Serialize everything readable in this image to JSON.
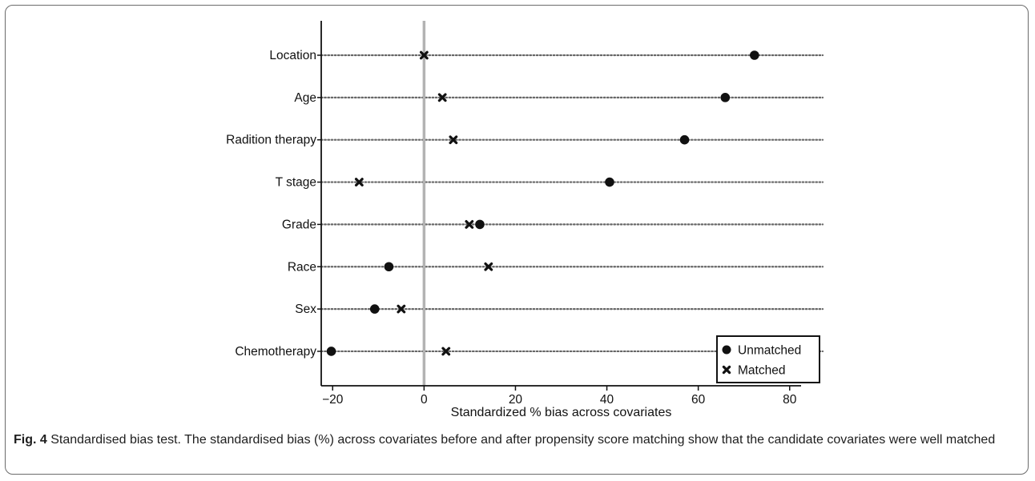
{
  "chart_data": {
    "type": "scatter",
    "categories": [
      "Location",
      "Age",
      "Radition therapy",
      "T stage",
      "Grade",
      "Race",
      "Sex",
      "Chemotherapy"
    ],
    "series": [
      {
        "name": "Unmatched",
        "marker": "circle",
        "values": [
          72.3,
          65.9,
          57.0,
          40.6,
          12.2,
          -7.7,
          -10.8,
          -20.3
        ]
      },
      {
        "name": "Matched",
        "marker": "x",
        "values": [
          0.0,
          4.0,
          6.4,
          -14.2,
          9.9,
          14.1,
          -5.0,
          4.8
        ]
      }
    ],
    "xlabel": "Standardized % bias across covariates",
    "xticks": [
      -20,
      0,
      20,
      40,
      60,
      80
    ],
    "xtick_labels": [
      "−20",
      "0",
      "20",
      "40",
      "60",
      "80"
    ],
    "xlim": [
      -22.5,
      82.5
    ],
    "reference_line": 0,
    "legend_position": "bottom-right",
    "colors": {
      "markers": "#111111",
      "reference_line": "#b3b3b3",
      "dotted_lines": "#666666"
    }
  },
  "caption": {
    "label": "Fig. 4",
    "text": " Standardised bias test. The standardised bias (%) across covariates before and after propensity score matching show that the candidate covariates were well matched"
  }
}
